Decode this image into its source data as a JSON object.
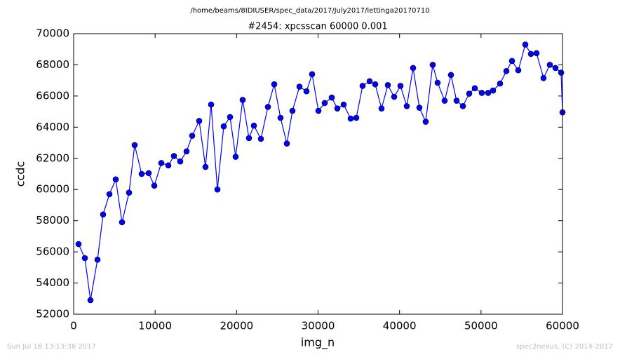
{
  "chart_data": {
    "type": "line",
    "suptitle": "/home/beams/8IDIUSER/spec_data/2017/July2017/lettinga20170710",
    "title": "#2454: xpcsscan 60000 0.001",
    "xlabel": "img_n",
    "ylabel": "ccdc",
    "footer_left": "Sun Jul 16 13:13:36 2017",
    "footer_right": "spec2nexus, (C) 2014-2017",
    "x": [
      603,
      1377,
      2066,
      2927,
      3615,
      4390,
      5165,
      5940,
      6800,
      7489,
      8350,
      9211,
      9899,
      10760,
      11621,
      12310,
      13085,
      13859,
      14548,
      15409,
      16183,
      16872,
      17647,
      18421,
      19196,
      19885,
      20746,
      21520,
      22123,
      22984,
      23845,
      24620,
      25394,
      26169,
      26858,
      27718,
      28579,
      29268,
      30043,
      30817,
      31678,
      32367,
      33141,
      34002,
      34691,
      35466,
      36326,
      37015,
      37790,
      38564,
      39339,
      40114,
      40888,
      41663,
      42438,
      43212,
      44073,
      44676,
      45537,
      46311,
      47000,
      47775,
      48549,
      49238,
      50099,
      50874,
      51476,
      52337,
      53112,
      53800,
      54575,
      55436,
      56125,
      56813,
      57674,
      58449,
      59138,
      59827,
      60000
    ],
    "series": [
      {
        "name": "ccdc",
        "color": "#0000ff",
        "values": [
          56500,
          55600,
          52900,
          55500,
          58400,
          59700,
          60650,
          57900,
          59800,
          62850,
          61000,
          61050,
          60250,
          61700,
          61550,
          62150,
          61800,
          62450,
          63450,
          64400,
          61450,
          65450,
          60000,
          64050,
          64650,
          62100,
          65750,
          63300,
          64100,
          63250,
          65300,
          66750,
          64600,
          62950,
          65050,
          66600,
          66300,
          67400,
          65050,
          65550,
          65900,
          65200,
          65450,
          64550,
          64600,
          66650,
          66950,
          66750,
          65200,
          66700,
          65950,
          66650,
          65350,
          67800,
          65250,
          64350,
          68000,
          66850,
          65700,
          67350,
          65700,
          65350,
          66150,
          66500,
          66200,
          66200,
          66350,
          66800,
          67600,
          68250,
          67650,
          69300,
          68700,
          68750,
          67150,
          68000,
          67800,
          67500,
          64950
        ]
      }
    ],
    "xlim": [
      0,
      60000
    ],
    "xticks": [
      0,
      10000,
      20000,
      30000,
      40000,
      50000,
      60000
    ],
    "ylim": [
      52000,
      70000
    ],
    "yticks": [
      52000,
      54000,
      56000,
      58000,
      60000,
      62000,
      64000,
      66000,
      68000,
      70000
    ]
  }
}
